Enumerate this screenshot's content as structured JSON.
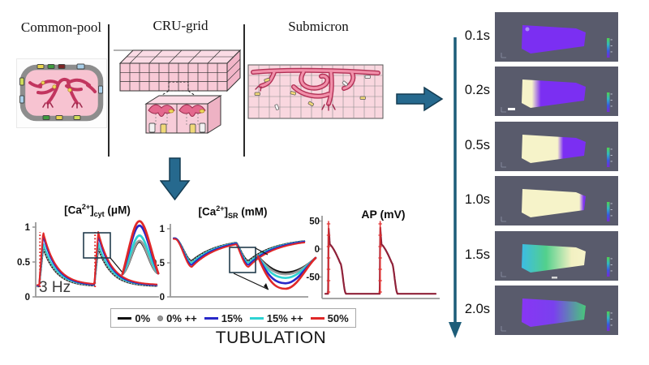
{
  "models": {
    "items": [
      {
        "label": "Common-pool"
      },
      {
        "label": "CRU-grid"
      },
      {
        "label": "Submicron"
      }
    ]
  },
  "arrows": {
    "fill": "#26698e",
    "stroke": "#143c52",
    "timeline_color": "#1d5d79"
  },
  "plot_titles": {
    "cyt": {
      "pre": "[Ca",
      "sup": "2+",
      "bracket": "]",
      "sub": "cyt",
      "unit": " (μM)"
    },
    "sr": {
      "pre": "[Ca",
      "sup": "2+",
      "bracket": "]",
      "sub": "SR",
      "unit": " (mM)"
    },
    "ap": {
      "label": "AP (mV)"
    }
  },
  "chart_data": [
    {
      "type": "line",
      "title": "[Ca2+]cyt (uM)",
      "pacing_label": "3 Hz",
      "x_range_s": [
        0,
        0.78
      ],
      "ylim": [
        0,
        1
      ],
      "yticks": [
        "1",
        "0.5",
        "0"
      ],
      "beat_times": [
        0.012,
        0.37
      ],
      "stimulus_marker_color": "#e02828",
      "series": [
        {
          "name": "0%",
          "color": "#111111",
          "style": "solid",
          "peak": 0.7,
          "baseline": 0.15
        },
        {
          "name": "0% ++",
          "color": "#9a9a9a",
          "style": "dotted",
          "peak": 0.71,
          "baseline": 0.15
        },
        {
          "name": "15% ++",
          "color": "#2ed3d3",
          "style": "solid",
          "peak": 0.77,
          "baseline": 0.16
        },
        {
          "name": "15%",
          "color": "#2828c8",
          "style": "solid",
          "peak": 0.88,
          "baseline": 0.16
        },
        {
          "name": "50%",
          "color": "#e02828",
          "style": "solid",
          "peak": 0.93,
          "baseline": 0.17
        }
      ]
    },
    {
      "type": "line",
      "title": "[Ca2+]SR (mM)",
      "x_range_s": [
        0,
        0.78
      ],
      "ylim": [
        0,
        1
      ],
      "yticks": [
        "1",
        "0.5",
        "0"
      ],
      "beat_times": [
        0.008,
        0.345
      ],
      "series": [
        {
          "name": "0%",
          "color": "#111111",
          "style": "solid",
          "max": 0.86,
          "min": 0.53
        },
        {
          "name": "0% ++",
          "color": "#9a9a9a",
          "style": "dotted",
          "max": 0.86,
          "min": 0.52
        },
        {
          "name": "15% ++",
          "color": "#2ed3d3",
          "style": "solid",
          "max": 0.86,
          "min": 0.5
        },
        {
          "name": "15%",
          "color": "#2828c8",
          "style": "solid",
          "max": 0.86,
          "min": 0.47
        },
        {
          "name": "50%",
          "color": "#e02828",
          "style": "solid",
          "max": 0.85,
          "min": 0.44
        }
      ]
    },
    {
      "type": "line",
      "title": "AP (mV)",
      "x_range_s": [
        0,
        0.78
      ],
      "ylim": [
        -90,
        50
      ],
      "yticks": [
        "50",
        "0",
        "-50"
      ],
      "beat_times": [
        0.02,
        0.385
      ],
      "marker_color": "#e03030",
      "series": [
        {
          "name": "AP",
          "color": "#8f2038",
          "rest": -80,
          "peak": 40,
          "plateau_start": 8,
          "plateau_end": -25
        }
      ]
    }
  ],
  "legend": {
    "entries": [
      {
        "label": "0%",
        "color": "#111111",
        "marker": "line"
      },
      {
        "label": "0% ++",
        "color": "#9a9a9a",
        "marker": "dot"
      },
      {
        "label": "15%",
        "color": "#2828c8",
        "marker": "line"
      },
      {
        "label": "15% ++",
        "color": "#2ed3d3",
        "marker": "line"
      },
      {
        "label": "50%",
        "color": "#e02828",
        "marker": "line"
      }
    ]
  },
  "caption": {
    "text": "TUBULATION"
  },
  "timeline": {
    "panel_bg": "#595b6c",
    "colorbar_stops": [
      "#50d050",
      "#30b8c0",
      "#3858e0",
      "#7828d8"
    ],
    "frames": [
      {
        "time": "0.1s",
        "stops": [
          [
            "#7b2ff2",
            0
          ],
          [
            "#7b2ff2",
            1
          ]
        ],
        "spot": true
      },
      {
        "time": "0.2s",
        "stops": [
          [
            "#f6f3c9",
            0
          ],
          [
            "#f6f3c9",
            0.16
          ],
          [
            "#7b2ff2",
            0.3
          ],
          [
            "#7b2ff2",
            1
          ]
        ],
        "scalebar": true
      },
      {
        "time": "0.5s",
        "stops": [
          [
            "#f6f3c9",
            0
          ],
          [
            "#f6f3c9",
            0.56
          ],
          [
            "#7b2ff2",
            0.65
          ],
          [
            "#7b2ff2",
            1
          ]
        ]
      },
      {
        "time": "1.0s",
        "stops": [
          [
            "#f6f3c9",
            0
          ],
          [
            "#f6f3c9",
            0.9
          ],
          [
            "#7b2ff2",
            0.97
          ],
          [
            "#7b2ff2",
            1
          ]
        ]
      },
      {
        "time": "1.5s",
        "stops": [
          [
            "#3cbce4",
            0
          ],
          [
            "#52d08c",
            0.38
          ],
          [
            "#f2f0c2",
            0.78
          ],
          [
            "#f6f3c9",
            1
          ]
        ],
        "dash": true
      },
      {
        "time": "2.0s",
        "stops": [
          [
            "#8836f4",
            0
          ],
          [
            "#7a40ee",
            0.5
          ],
          [
            "#48c87a",
            1
          ]
        ]
      }
    ]
  }
}
